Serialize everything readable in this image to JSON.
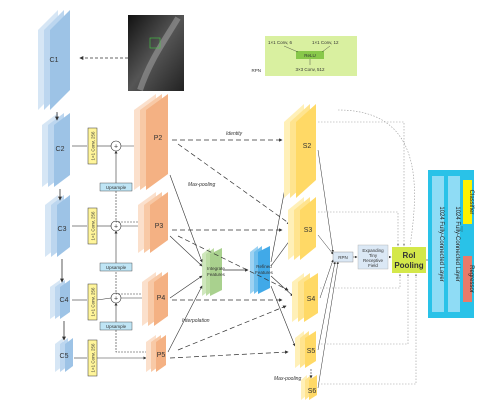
{
  "backbone": {
    "c1": "C1",
    "c2": "C2",
    "c3": "C3",
    "c4": "C4",
    "c5": "C5"
  },
  "lateral_conv_label": "1×1 Conv, 256",
  "upsample_label": "Upsample",
  "pyramid": {
    "p2": "P2",
    "p3": "P3",
    "p4": "P4",
    "p5": "P5"
  },
  "stages": {
    "s2": "S2",
    "s3": "S3",
    "s4": "S4",
    "s5": "S5",
    "s6": "S6"
  },
  "annotations": {
    "identity": "Identity",
    "max_pooling": "Max-pooling",
    "interpolation": "Interpolation",
    "max_pooling_bottom": "Max-pooling"
  },
  "integrate_features": [
    "Integrate",
    "Features"
  ],
  "refined_features": [
    "Refined",
    "Features"
  ],
  "rpn_legend": {
    "conv_a": "1×1 Conv, 6",
    "conv_b": "1×1 Conv, 12",
    "relu": "ReLU",
    "conv_c": "3×3 Conv, 512",
    "rpn": "RPN"
  },
  "rpn_label": "RPN",
  "expanding_field": [
    "Expanding",
    "Tiny",
    "Receptive",
    "Field"
  ],
  "roi_pooling": [
    "RoI",
    "Pooling"
  ],
  "fc_layers": [
    "1024 Fully-Connected Layer",
    "1024 Fully-Connected Layer"
  ],
  "classifier": "Classifier",
  "regressor": "Regressor",
  "colors": {
    "backbone": "#9dc3e6",
    "pyramid": "#f4b183",
    "stage": "#ffd966",
    "green": "#a9d18e",
    "blue": "#41a9e8",
    "cyan": "#29c2e8",
    "fc": "#8fdcf5",
    "lime": "#d4e84a",
    "rpn_box": "#dbe8f5",
    "red": "#e87a6a",
    "yellow": "#fff200"
  },
  "image_icon": "chest-xray-image"
}
